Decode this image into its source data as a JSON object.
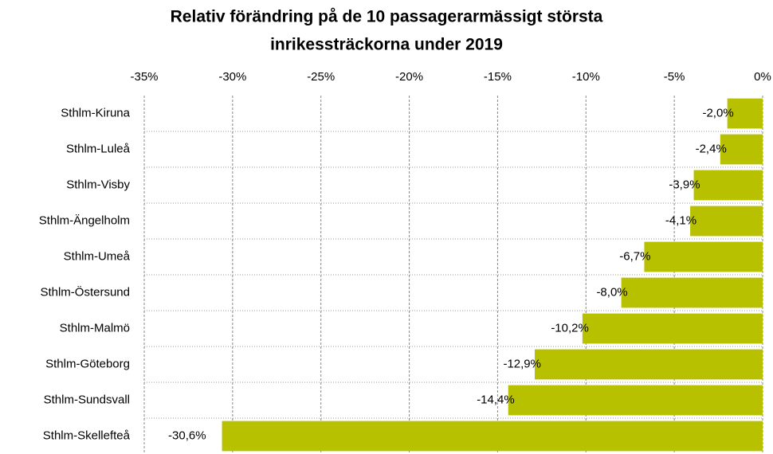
{
  "chart_data": {
    "type": "bar",
    "orientation": "horizontal",
    "title": [
      "Relativ förändring på de 10 passagerarmässigt största",
      "inrikessträckorna under  2019"
    ],
    "categories": [
      "Sthlm-Kiruna",
      "Sthlm-Luleå",
      "Sthlm-Visby",
      "Sthlm-Ängelholm",
      "Sthlm-Umeå",
      "Sthlm-Östersund",
      "Sthlm-Malmö",
      "Sthlm-Göteborg",
      "Sthlm-Sundsvall",
      "Sthlm-Skellefteå"
    ],
    "values": [
      -2.0,
      -2.4,
      -3.9,
      -4.1,
      -6.7,
      -8.0,
      -10.2,
      -12.9,
      -14.4,
      -30.6
    ],
    "value_labels": [
      "-2,0%",
      "-2,4%",
      "-3,9%",
      "-4,1%",
      "-6,7%",
      "-8,0%",
      "-10,2%",
      "-12,9%",
      "-14,4%",
      "-30,6%"
    ],
    "color": "#b8c100",
    "xlim": [
      -35,
      0
    ],
    "xticks": [
      {
        "value": -35,
        "label": "-35%"
      },
      {
        "value": -30,
        "label": "-30%"
      },
      {
        "value": -25,
        "label": "-25%"
      },
      {
        "value": -20,
        "label": "-20%"
      },
      {
        "value": -15,
        "label": "-15%"
      },
      {
        "value": -10,
        "label": "-10%"
      },
      {
        "value": -5,
        "label": "-5%"
      },
      {
        "value": 0,
        "label": "0%"
      }
    ],
    "grid": true
  }
}
